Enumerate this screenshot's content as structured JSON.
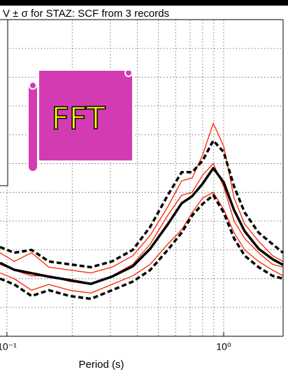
{
  "chart_data": {
    "type": "line",
    "title": "V ± σ for STAZ: SCF from 3 records",
    "x_label": "Period (s)",
    "x_scale": "log",
    "x": [
      0.093,
      0.108,
      0.13,
      0.156,
      0.195,
      0.244,
      0.305,
      0.381,
      0.458,
      0.552,
      0.64,
      0.716,
      0.8,
      0.895,
      1.0,
      1.117,
      1.25,
      1.45,
      1.68,
      1.88
    ],
    "series": [
      {
        "color": "#ff2200",
        "width": 1.3,
        "dash": false,
        "values": [
          2.9,
          2.6,
          2.9,
          2.4,
          2.3,
          2.2,
          2.4,
          2.8,
          3.5,
          4.5,
          5.4,
          5.5,
          6.3,
          7.4,
          6.6,
          4.8,
          3.9,
          3.3,
          2.8,
          2.6
        ]
      },
      {
        "color": "#ff2200",
        "width": 1.3,
        "dash": false,
        "values": [
          2.5,
          2.3,
          2.1,
          2.1,
          1.9,
          1.8,
          2.1,
          2.5,
          3.2,
          4.2,
          4.9,
          5.0,
          5.6,
          6.0,
          5.2,
          4.0,
          3.4,
          2.9,
          2.5,
          2.4
        ]
      },
      {
        "color": "#ff2200",
        "width": 1.3,
        "dash": false,
        "values": [
          2.2,
          2.0,
          1.6,
          1.8,
          1.6,
          1.5,
          1.8,
          2.1,
          2.5,
          3.2,
          3.7,
          4.3,
          4.8,
          5.0,
          4.4,
          3.6,
          3.0,
          2.6,
          2.3,
          2.1
        ]
      },
      {
        "color": "#000000",
        "width": 3.5,
        "dash": true,
        "values": [
          3.1,
          2.9,
          3.0,
          2.6,
          2.5,
          2.4,
          2.6,
          3.0,
          3.8,
          4.9,
          5.7,
          5.7,
          6.1,
          6.8,
          6.4,
          5.2,
          4.3,
          3.6,
          3.2,
          2.9
        ]
      },
      {
        "color": "#000000",
        "width": 3.5,
        "dash": false,
        "values": [
          2.55,
          2.31,
          2.19,
          2.07,
          1.95,
          1.82,
          2.07,
          2.43,
          3.04,
          3.89,
          4.62,
          4.87,
          5.3,
          5.84,
          5.35,
          4.38,
          3.65,
          3.04,
          2.68,
          2.48
        ]
      },
      {
        "color": "#000000",
        "width": 3.5,
        "dash": true,
        "values": [
          2.0,
          1.8,
          1.4,
          1.6,
          1.4,
          1.3,
          1.6,
          1.9,
          2.3,
          3.0,
          3.6,
          4.2,
          4.6,
          4.9,
          4.3,
          3.4,
          2.8,
          2.4,
          2.1,
          2.0
        ]
      }
    ],
    "xlim": [
      0.0929,
      1.88
    ],
    "xticks": [
      {
        "value": 0.1,
        "label": "10⁻¹"
      },
      {
        "value": 1,
        "label": "10⁰"
      }
    ],
    "x_minor_grid": [
      0.2,
      0.3,
      0.4,
      0.5,
      0.6,
      0.7,
      0.8,
      0.9
    ],
    "ylim": [
      0,
      11
    ],
    "y_grid": [
      1,
      2,
      3,
      4,
      5,
      6,
      7,
      8,
      9,
      10
    ],
    "grid": true
  },
  "badge": {
    "label": "FFT"
  }
}
